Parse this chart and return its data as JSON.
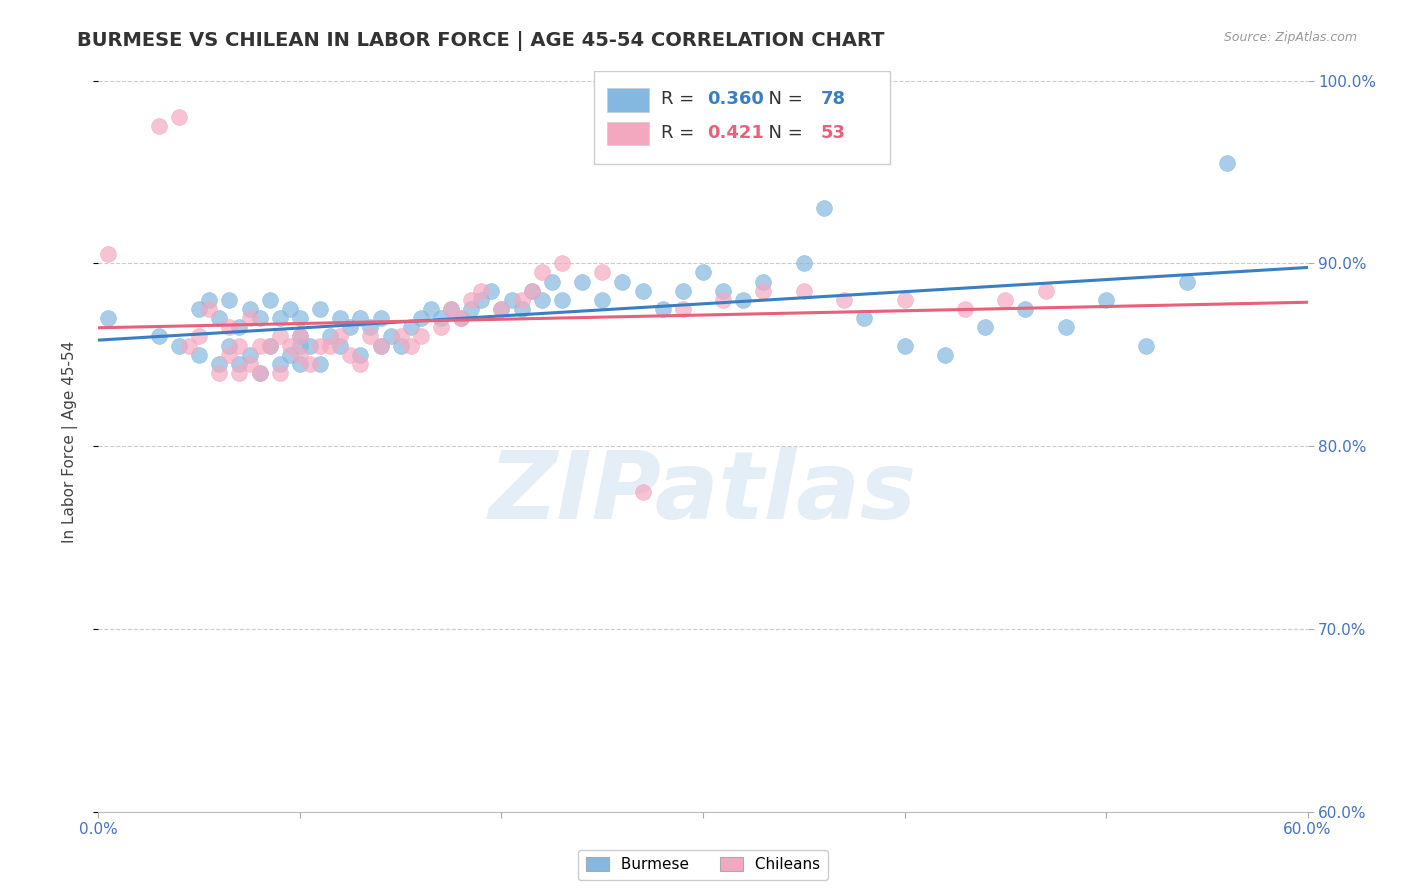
{
  "title": "BURMESE VS CHILEAN IN LABOR FORCE | AGE 45-54 CORRELATION CHART",
  "source": "Source: ZipAtlas.com",
  "ylabel": "In Labor Force | Age 45-54",
  "xlim": [
    0.0,
    0.6
  ],
  "ylim": [
    0.6,
    1.005
  ],
  "xticks": [
    0.0,
    0.1,
    0.2,
    0.3,
    0.4,
    0.5,
    0.6
  ],
  "yticks": [
    0.6,
    0.7,
    0.8,
    0.9,
    1.0
  ],
  "ytick_labels": [
    "60.0%",
    "70.0%",
    "80.0%",
    "90.0%",
    "100.0%"
  ],
  "xtick_labels_show": [
    "0.0%",
    "60.0%"
  ],
  "blue_color": "#85b8e0",
  "pink_color": "#f4a8c0",
  "blue_line_color": "#3a7fc1",
  "pink_line_color": "#e8607a",
  "legend_blue_R": "0.360",
  "legend_blue_N": "78",
  "legend_pink_R": "0.421",
  "legend_pink_N": "53",
  "watermark": "ZIPatlas",
  "title_fontsize": 14,
  "axis_label_fontsize": 11,
  "tick_fontsize": 11,
  "blue_scatter_x": [
    0.005,
    0.03,
    0.04,
    0.05,
    0.05,
    0.055,
    0.06,
    0.06,
    0.065,
    0.065,
    0.07,
    0.07,
    0.075,
    0.075,
    0.08,
    0.08,
    0.085,
    0.085,
    0.09,
    0.09,
    0.095,
    0.095,
    0.1,
    0.1,
    0.1,
    0.1,
    0.105,
    0.11,
    0.11,
    0.115,
    0.12,
    0.12,
    0.125,
    0.13,
    0.13,
    0.135,
    0.14,
    0.14,
    0.145,
    0.15,
    0.155,
    0.16,
    0.165,
    0.17,
    0.175,
    0.18,
    0.185,
    0.19,
    0.195,
    0.2,
    0.205,
    0.21,
    0.215,
    0.22,
    0.225,
    0.23,
    0.24,
    0.25,
    0.26,
    0.27,
    0.28,
    0.29,
    0.3,
    0.31,
    0.32,
    0.33,
    0.35,
    0.36,
    0.38,
    0.4,
    0.42,
    0.44,
    0.46,
    0.48,
    0.5,
    0.52,
    0.54,
    0.56
  ],
  "blue_scatter_y": [
    0.87,
    0.86,
    0.855,
    0.85,
    0.875,
    0.88,
    0.845,
    0.87,
    0.855,
    0.88,
    0.845,
    0.865,
    0.85,
    0.875,
    0.84,
    0.87,
    0.855,
    0.88,
    0.845,
    0.87,
    0.85,
    0.875,
    0.845,
    0.855,
    0.86,
    0.87,
    0.855,
    0.845,
    0.875,
    0.86,
    0.855,
    0.87,
    0.865,
    0.85,
    0.87,
    0.865,
    0.855,
    0.87,
    0.86,
    0.855,
    0.865,
    0.87,
    0.875,
    0.87,
    0.875,
    0.87,
    0.875,
    0.88,
    0.885,
    0.875,
    0.88,
    0.875,
    0.885,
    0.88,
    0.89,
    0.88,
    0.89,
    0.88,
    0.89,
    0.885,
    0.875,
    0.885,
    0.895,
    0.885,
    0.88,
    0.89,
    0.9,
    0.93,
    0.87,
    0.855,
    0.85,
    0.865,
    0.875,
    0.865,
    0.88,
    0.855,
    0.89,
    0.955
  ],
  "pink_scatter_x": [
    0.005,
    0.03,
    0.04,
    0.045,
    0.05,
    0.055,
    0.06,
    0.065,
    0.065,
    0.07,
    0.07,
    0.075,
    0.075,
    0.08,
    0.08,
    0.085,
    0.09,
    0.09,
    0.095,
    0.1,
    0.1,
    0.105,
    0.11,
    0.115,
    0.12,
    0.125,
    0.13,
    0.135,
    0.14,
    0.15,
    0.155,
    0.16,
    0.17,
    0.175,
    0.18,
    0.185,
    0.19,
    0.2,
    0.21,
    0.215,
    0.22,
    0.23,
    0.25,
    0.27,
    0.29,
    0.31,
    0.33,
    0.35,
    0.37,
    0.4,
    0.43,
    0.45,
    0.47
  ],
  "pink_scatter_y": [
    0.905,
    0.975,
    0.98,
    0.855,
    0.86,
    0.875,
    0.84,
    0.85,
    0.865,
    0.84,
    0.855,
    0.845,
    0.87,
    0.84,
    0.855,
    0.855,
    0.84,
    0.86,
    0.855,
    0.85,
    0.86,
    0.845,
    0.855,
    0.855,
    0.86,
    0.85,
    0.845,
    0.86,
    0.855,
    0.86,
    0.855,
    0.86,
    0.865,
    0.875,
    0.87,
    0.88,
    0.885,
    0.875,
    0.88,
    0.885,
    0.895,
    0.9,
    0.895,
    0.775,
    0.875,
    0.88,
    0.885,
    0.885,
    0.88,
    0.88,
    0.875,
    0.88,
    0.885
  ]
}
